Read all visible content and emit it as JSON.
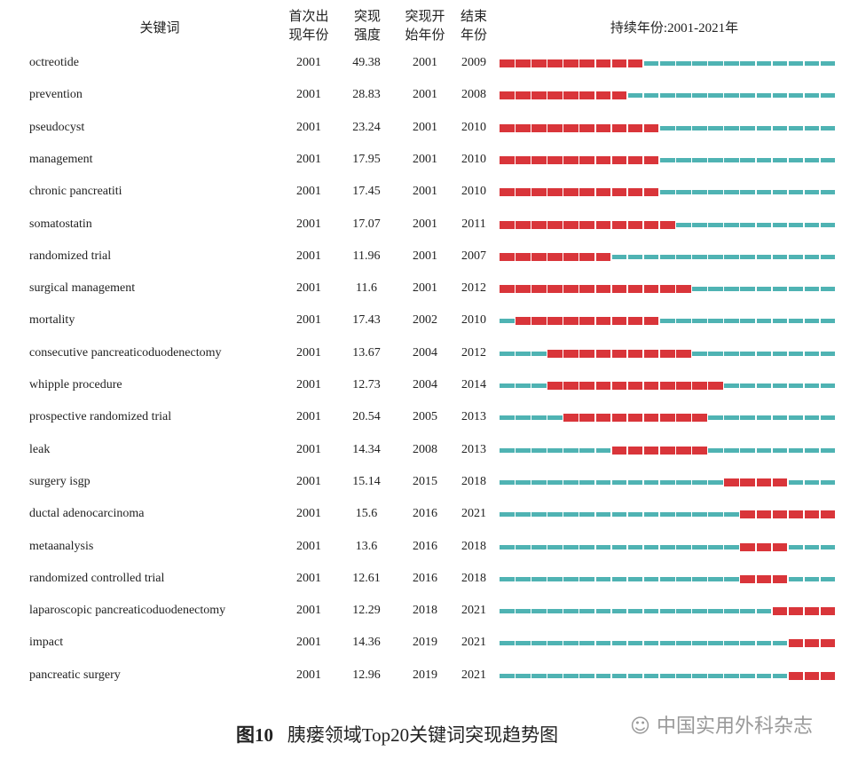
{
  "chart_data": {
    "type": "table",
    "headers": {
      "keyword": "关键词",
      "first_year": "首次出现年份",
      "strength": "突现强度",
      "begin": "突现开始年份",
      "end": "结束年份",
      "duration": "持续年份:2001-2021年"
    },
    "year_range": [
      2001,
      2021
    ],
    "colors": {
      "burst": "#d9353a",
      "normal": "#4fb3b3"
    },
    "rows": [
      {
        "keyword": "octreotide",
        "first_year": "2001",
        "strength": "49.38",
        "begin": "2001",
        "end": "2009"
      },
      {
        "keyword": "prevention",
        "first_year": "2001",
        "strength": "28.83",
        "begin": "2001",
        "end": "2008"
      },
      {
        "keyword": "pseudocyst",
        "first_year": "2001",
        "strength": "23.24",
        "begin": "2001",
        "end": "2010"
      },
      {
        "keyword": "management",
        "first_year": "2001",
        "strength": "17.95",
        "begin": "2001",
        "end": "2010"
      },
      {
        "keyword": "chronic pancreatiti",
        "first_year": "2001",
        "strength": "17.45",
        "begin": "2001",
        "end": "2010"
      },
      {
        "keyword": "somatostatin",
        "first_year": "2001",
        "strength": "17.07",
        "begin": "2001",
        "end": "2011"
      },
      {
        "keyword": "randomized trial",
        "first_year": "2001",
        "strength": "11.96",
        "begin": "2001",
        "end": "2007"
      },
      {
        "keyword": "surgical management",
        "first_year": "2001",
        "strength": "11.6",
        "begin": "2001",
        "end": "2012"
      },
      {
        "keyword": "mortality",
        "first_year": "2001",
        "strength": "17.43",
        "begin": "2002",
        "end": "2010"
      },
      {
        "keyword": "consecutive pancreaticoduodenectomy",
        "first_year": "2001",
        "strength": "13.67",
        "begin": "2004",
        "end": "2012"
      },
      {
        "keyword": "whipple procedure",
        "first_year": "2001",
        "strength": "12.73",
        "begin": "2004",
        "end": "2014"
      },
      {
        "keyword": "prospective randomized trial",
        "first_year": "2001",
        "strength": "20.54",
        "begin": "2005",
        "end": "2013"
      },
      {
        "keyword": "leak",
        "first_year": "2001",
        "strength": "14.34",
        "begin": "2008",
        "end": "2013"
      },
      {
        "keyword": "surgery isgp",
        "first_year": "2001",
        "strength": "15.14",
        "begin": "2015",
        "end": "2018"
      },
      {
        "keyword": "ductal adenocarcinoma",
        "first_year": "2001",
        "strength": "15.6",
        "begin": "2016",
        "end": "2021"
      },
      {
        "keyword": "metaanalysis",
        "first_year": "2001",
        "strength": "13.6",
        "begin": "2016",
        "end": "2018"
      },
      {
        "keyword": "randomized controlled trial",
        "first_year": "2001",
        "strength": "12.61",
        "begin": "2016",
        "end": "2018"
      },
      {
        "keyword": "laparoscopic pancreaticoduodenectomy",
        "first_year": "2001",
        "strength": "12.29",
        "begin": "2018",
        "end": "2021"
      },
      {
        "keyword": "impact",
        "first_year": "2001",
        "strength": "14.36",
        "begin": "2019",
        "end": "2021"
      },
      {
        "keyword": "pancreatic surgery",
        "first_year": "2001",
        "strength": "12.96",
        "begin": "2019",
        "end": "2021"
      }
    ]
  },
  "caption": {
    "label": "图10",
    "title": "胰瘘领域Top20关键词突现趋势图"
  },
  "watermark": "中国实用外科杂志"
}
